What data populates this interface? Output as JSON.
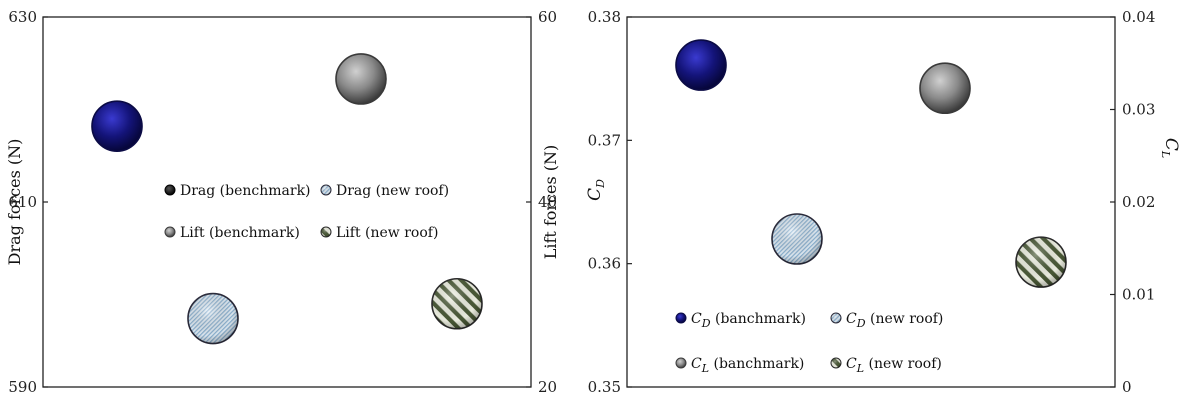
{
  "chart_data": [
    {
      "type": "scatter",
      "panel": "left",
      "ylabel_left": "Drag forces (N)",
      "ylabel_right": "Lift forces (N)",
      "ylim_left": [
        590,
        630
      ],
      "ylim_right": [
        20,
        60
      ],
      "yticks_left": [
        "590",
        "610",
        "630"
      ],
      "yticks_right": [
        "20",
        "40",
        "60"
      ],
      "x_positions": [
        1,
        2
      ],
      "xlim": [
        0.5,
        2.5
      ],
      "series": [
        {
          "name": "Drag (benchmark)",
          "axis": "left",
          "x": 1,
          "y": 618.2,
          "style": "navy"
        },
        {
          "name": "Drag (new roof)",
          "axis": "left",
          "x": 1,
          "y": 597.4,
          "style": "lightblue"
        },
        {
          "name": "Lift (benchmark)",
          "axis": "right",
          "x": 2,
          "y": 53.3,
          "style": "gray"
        },
        {
          "name": "Lift (new roof)",
          "axis": "right",
          "x": 2,
          "y": 29.0,
          "style": "greenstripe"
        }
      ],
      "legend": [
        {
          "name": "Drag (benchmark)",
          "style": "black"
        },
        {
          "name": "Drag (new roof)",
          "style": "lightblue"
        },
        {
          "name": "Lift (benchmark)",
          "style": "gray"
        },
        {
          "name": "Lift (new roof)",
          "style": "greenstripe"
        }
      ],
      "legend_position": "center"
    },
    {
      "type": "scatter",
      "panel": "right",
      "ylabel_left": {
        "main": "C",
        "sub": "D"
      },
      "ylabel_right": {
        "main": "C",
        "sub": "L"
      },
      "ylim_left": [
        0.35,
        0.38
      ],
      "ylim_right": [
        0,
        0.04
      ],
      "yticks_left": [
        "0.35",
        "0.36",
        "0.37",
        "0.38"
      ],
      "yticks_right": [
        "0",
        "0.01",
        "0.02",
        "0.03",
        "0.04"
      ],
      "x_positions": [
        1,
        2
      ],
      "xlim": [
        0.5,
        2.5
      ],
      "series": [
        {
          "name": "C_D (banchmark)",
          "axis": "left",
          "x": 1,
          "y": 0.3761,
          "style": "navy"
        },
        {
          "name": "C_D (new roof)",
          "axis": "left",
          "x": 1,
          "y": 0.362,
          "style": "lightblue"
        },
        {
          "name": "C_L (banchmark)",
          "axis": "right",
          "x": 2,
          "y": 0.0323,
          "style": "gray"
        },
        {
          "name": "C_L (new roof)",
          "axis": "right",
          "x": 2,
          "y": 0.0135,
          "style": "greenstripe"
        }
      ],
      "legend": [
        {
          "main": "C",
          "sub": "D",
          "rest": " (banchmark)",
          "style": "navy"
        },
        {
          "main": "C",
          "sub": "D",
          "rest": " (new roof)",
          "style": "lightblue"
        },
        {
          "main": "C",
          "sub": "L",
          "rest": " (banchmark)",
          "style": "gray"
        },
        {
          "main": "C",
          "sub": "L",
          "rest": " (new roof)",
          "style": "greenstripe"
        }
      ],
      "legend_position": "bottom-left"
    }
  ],
  "colors": {
    "navy": "#14147a",
    "gray": "#8a8a8a",
    "lightblue": "#cfe3f2",
    "greenstripe": "#5b6b45",
    "black": "#111111",
    "axis": "#222222"
  }
}
